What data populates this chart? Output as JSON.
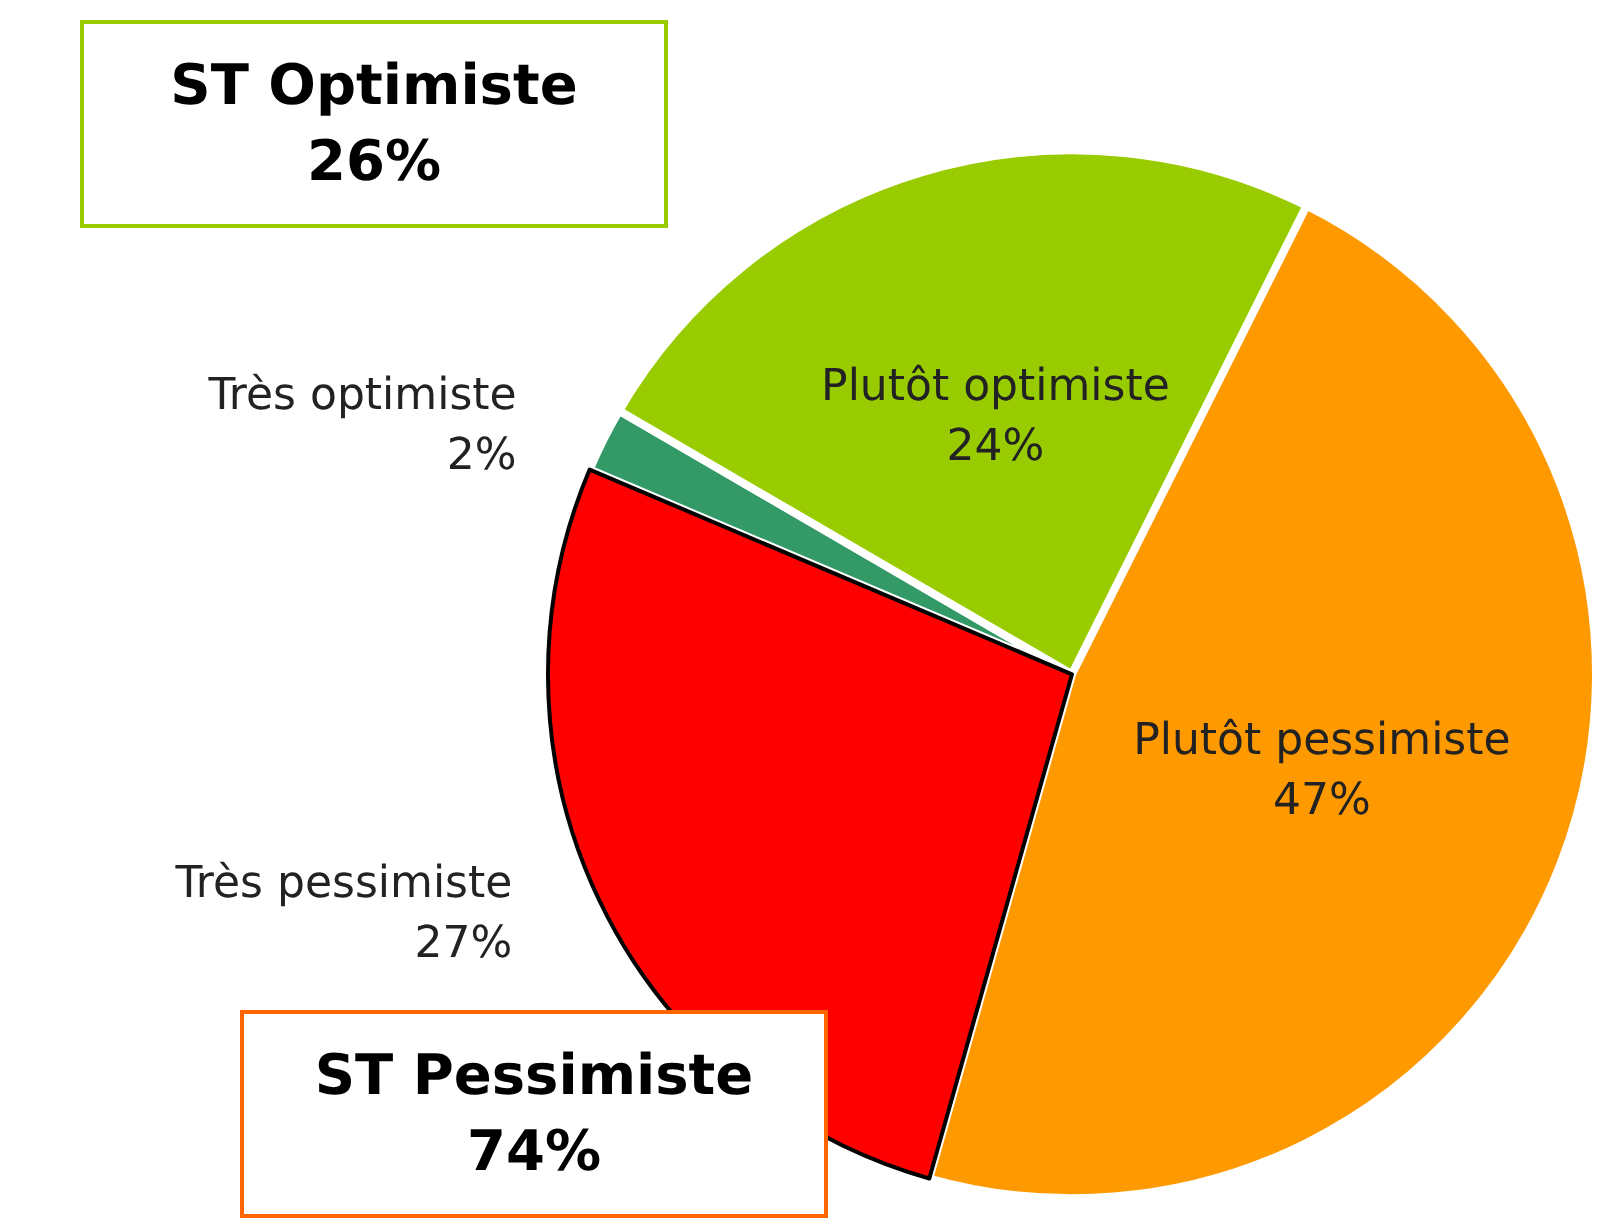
{
  "chart_data": {
    "type": "pie",
    "categories": [
      "Très optimiste",
      "Plutôt optimiste",
      "Plutôt pessimiste",
      "Très pessimiste"
    ],
    "values": [
      2,
      24,
      47,
      27
    ],
    "value_labels": [
      "2%",
      "24%",
      "47%",
      "27%"
    ],
    "colors": [
      "#339966",
      "#99cc00",
      "#ff9900",
      "#ff0000"
    ],
    "annotations": [
      "ST Optimiste\n26%",
      "ST Pessimiste\n74%"
    ],
    "legend": false
  }
}
